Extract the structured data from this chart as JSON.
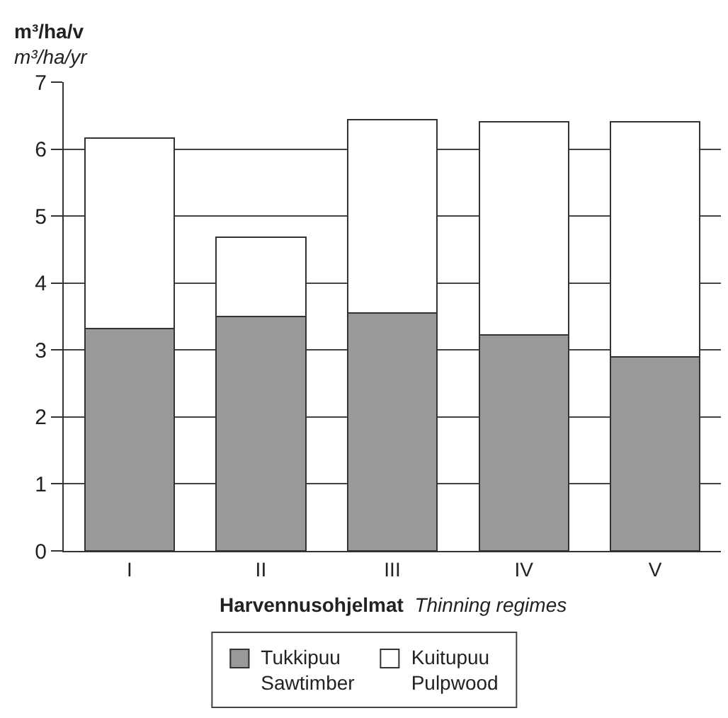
{
  "chart_data": {
    "type": "bar",
    "stacked": true,
    "ylabel": "m³/ha/v\nm³/ha/yr",
    "xlabel": "Harvennusohjelmat Thinning regimes",
    "categories": [
      "I",
      "II",
      "III",
      "IV",
      "V"
    ],
    "series": [
      {
        "name": "Tukkipuu\nSawtimber",
        "color": "#999999",
        "values": [
          3.32,
          3.5,
          3.55,
          3.22,
          2.9
        ]
      },
      {
        "name": "Kuitupuu\nPulpwood",
        "color": "#ffffff",
        "values": [
          2.85,
          1.18,
          2.89,
          3.19,
          3.51
        ]
      }
    ],
    "ylim": [
      0,
      7
    ],
    "yticks": [
      0,
      1,
      2,
      3,
      4,
      5,
      6,
      7
    ],
    "grid": "y",
    "legend": "bottom"
  }
}
